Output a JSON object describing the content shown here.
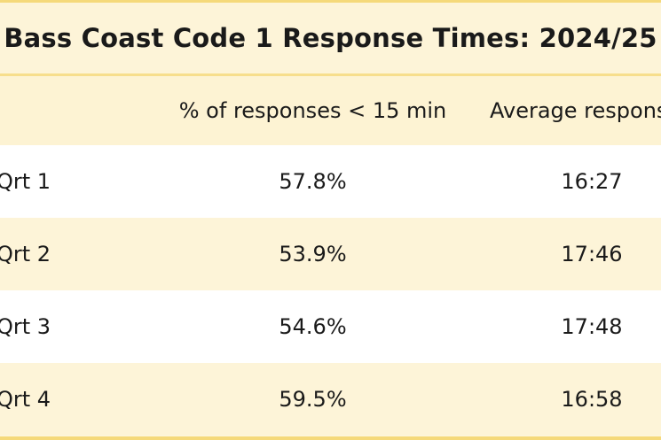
{
  "table": {
    "title": "Bass Coast Code 1 Response Times: 2024/25",
    "headers": {
      "col1": "",
      "col2": "% of responses < 15 min",
      "col3": "Average respons"
    },
    "rows": [
      {
        "label": "Qrt 1",
        "pct": "57.8%",
        "avg": "16:27"
      },
      {
        "label": "Qrt 2",
        "pct": "53.9%",
        "avg": "17:46"
      },
      {
        "label": "Qrt  3",
        "pct": "54.6%",
        "avg": "17:48"
      },
      {
        "label": "Qrt 4",
        "pct": "59.5%",
        "avg": "16:58"
      }
    ]
  },
  "colors": {
    "cream": "#fdf4d8",
    "rule": "#f5d97a",
    "white": "#ffffff",
    "text": "#1a1a1a"
  }
}
